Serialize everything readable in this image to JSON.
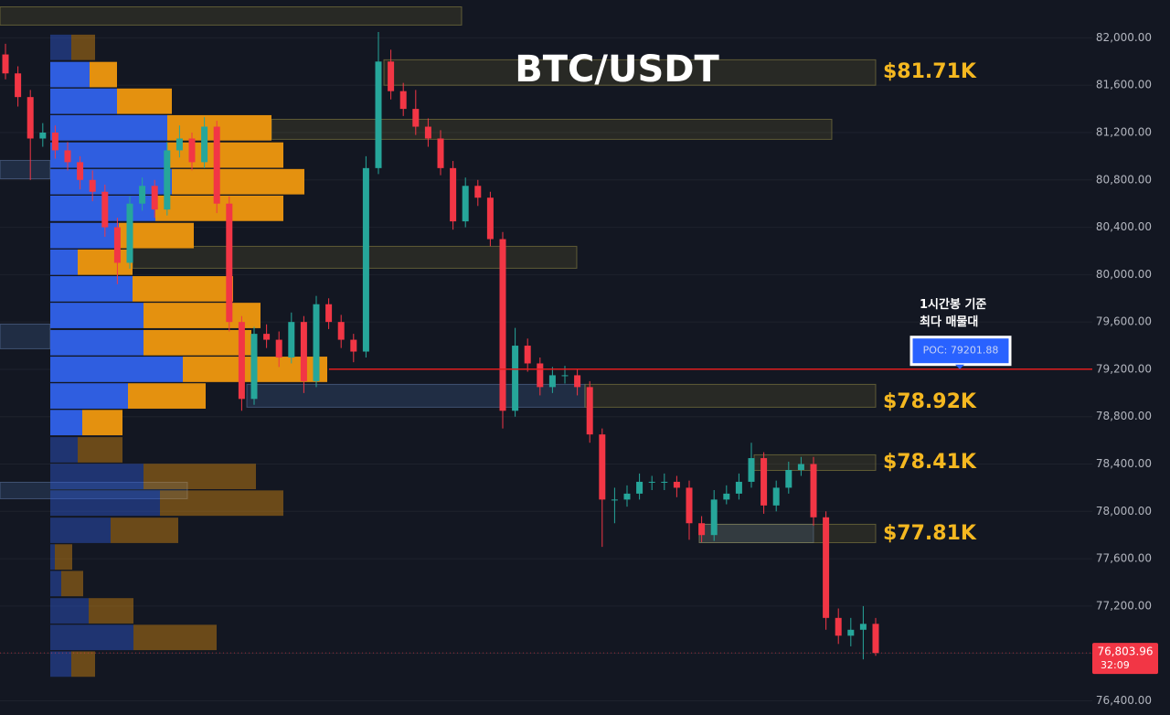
{
  "chart_data": {
    "type": "candlestick",
    "title": "BTC/USDT",
    "open": [
      81860,
      81700,
      81500,
      81150,
      81200,
      81050,
      80950,
      80800,
      80700,
      80400,
      80100,
      80600,
      80750,
      80550,
      81050,
      81150,
      80950,
      81250,
      80600,
      79600,
      78950,
      79500,
      79450,
      79300,
      79600,
      79100,
      79750,
      79600,
      79450,
      79350,
      80900,
      81800,
      81550,
      81400,
      81250,
      81150,
      80900,
      80450,
      80750,
      80650,
      80300,
      78850,
      79400,
      79250,
      79050,
      79150,
      79150,
      79050,
      78650,
      78100,
      78100,
      78150,
      78250,
      78250,
      78250,
      78200,
      77900,
      77800,
      78100,
      78150,
      78250,
      78450,
      78050,
      78200,
      78350,
      78400,
      77950,
      77100,
      76950,
      77000,
      77050
    ],
    "high": [
      81950,
      81760,
      81560,
      81280,
      81260,
      81120,
      81000,
      80880,
      80760,
      80480,
      80660,
      80820,
      80800,
      81120,
      81260,
      81200,
      81330,
      81300,
      80660,
      79650,
      79560,
      79580,
      79520,
      79680,
      79650,
      79820,
      79800,
      79660,
      79500,
      81000,
      82050,
      81900,
      81620,
      81560,
      81320,
      81220,
      80960,
      80820,
      80800,
      80700,
      80360,
      79550,
      79460,
      79300,
      79220,
      79230,
      79200,
      79100,
      78700,
      78200,
      78220,
      78320,
      78300,
      78320,
      78300,
      78260,
      77960,
      78180,
      78220,
      78320,
      78580,
      78500,
      78260,
      78420,
      78460,
      78460,
      78000,
      77180,
      77100,
      77200,
      77100
    ],
    "low": [
      81650,
      81420,
      80800,
      81080,
      80980,
      80880,
      80720,
      80620,
      80320,
      79920,
      80050,
      80540,
      80480,
      80500,
      80990,
      80880,
      80900,
      80520,
      79520,
      78850,
      78900,
      79380,
      79220,
      79250,
      79000,
      79050,
      79540,
      79380,
      79260,
      79300,
      80850,
      81480,
      81340,
      81180,
      81080,
      80840,
      80380,
      80400,
      80580,
      80240,
      78700,
      78800,
      79180,
      78980,
      79000,
      79080,
      78980,
      78580,
      77700,
      77900,
      78040,
      78100,
      78180,
      78180,
      78120,
      77760,
      77740,
      77750,
      78060,
      78100,
      78200,
      77980,
      78000,
      78150,
      78300,
      77880,
      77000,
      76880,
      76860,
      76750,
      76780
    ],
    "close": [
      81700,
      81500,
      81150,
      81200,
      81050,
      80950,
      80800,
      80700,
      80400,
      80100,
      80600,
      80750,
      80550,
      81050,
      81150,
      80950,
      81250,
      80600,
      79600,
      78950,
      79500,
      79450,
      79300,
      79600,
      79100,
      79750,
      79600,
      79450,
      79350,
      80900,
      81800,
      81550,
      81400,
      81250,
      81150,
      80900,
      80450,
      80750,
      80650,
      80300,
      78850,
      79400,
      79250,
      79050,
      79150,
      79150,
      79050,
      78650,
      78100,
      78100,
      78150,
      78250,
      78250,
      78250,
      78200,
      77900,
      77800,
      78100,
      78150,
      78250,
      78450,
      78050,
      78200,
      78350,
      78400,
      77950,
      77100,
      76950,
      77000,
      77050,
      76803.96
    ],
    "up_color": "#26a69a",
    "down_color": "#f23645",
    "ylim": [
      76280,
      82320
    ],
    "yticks": [
      {
        "value": 76400,
        "label": "76,400.00"
      },
      {
        "value": 76800,
        "label": "76,800.00"
      },
      {
        "value": 77200,
        "label": "77,200.00"
      },
      {
        "value": 77600,
        "label": "77,600.00"
      },
      {
        "value": 78000,
        "label": "78,000.00"
      },
      {
        "value": 78400,
        "label": "78,400.00"
      },
      {
        "value": 78800,
        "label": "78,800.00"
      },
      {
        "value": 79200,
        "label": "79,200.00"
      },
      {
        "value": 79600,
        "label": "79,600.00"
      },
      {
        "value": 80000,
        "label": "80,000.00"
      },
      {
        "value": 80400,
        "label": "80,400.00"
      },
      {
        "value": 80800,
        "label": "80,800.00"
      },
      {
        "value": 81200,
        "label": "81,200.00"
      },
      {
        "value": 81600,
        "label": "81,600.00"
      },
      {
        "value": 82000,
        "label": "82,000.00"
      }
    ],
    "grid": true,
    "volume_profile": {
      "prices": [
        81920,
        81690,
        81465,
        81240,
        81010,
        80785,
        80560,
        80330,
        80105,
        79880,
        79655,
        79425,
        79200,
        78975,
        78750,
        78520,
        78295,
        78070,
        77840,
        77615,
        77390,
        77160,
        76935,
        76710
      ],
      "buy": [
        23,
        43,
        73,
        128,
        128,
        133,
        115,
        75,
        30,
        90,
        102,
        102,
        145,
        85,
        35,
        30,
        102,
        120,
        66,
        5,
        12,
        42,
        91,
        23
      ],
      "sell": [
        26,
        30,
        60,
        114,
        127,
        145,
        140,
        82,
        60,
        110,
        128,
        118,
        158,
        85,
        44,
        49,
        123,
        135,
        74,
        19,
        24,
        49,
        91,
        26
      ],
      "value_area": [
        78640,
        81800
      ],
      "buy_color": "#2f5ee0",
      "sell_color": "#e4910f"
    },
    "zones": [
      {
        "low": 82108,
        "high": 82262
      },
      {
        "low": 81600,
        "high": 81815,
        "value": 81710,
        "label": "$81.71K"
      },
      {
        "low": 81143,
        "high": 81312
      },
      {
        "low": 80054,
        "high": 80239
      },
      {
        "low": 78880,
        "high": 79073,
        "value": 78920,
        "label": "$78.92K"
      },
      {
        "low": 78346,
        "high": 78478,
        "value": 78410,
        "label": "$78.41K"
      },
      {
        "low": 77736,
        "high": 77891,
        "value": 77810,
        "label": "$77.81K"
      },
      {
        "low": 80810,
        "high": 80965
      },
      {
        "low": 79374,
        "high": 79582
      },
      {
        "low": 78107,
        "high": 78246
      }
    ],
    "poc": {
      "value": 79201.88,
      "label": "POC: 79201.88",
      "note": [
        "1시간봉 기준",
        "최다 매물대"
      ]
    },
    "last_price": {
      "value": 76803.96,
      "label": "76,803.96",
      "countdown": "32:09"
    }
  }
}
